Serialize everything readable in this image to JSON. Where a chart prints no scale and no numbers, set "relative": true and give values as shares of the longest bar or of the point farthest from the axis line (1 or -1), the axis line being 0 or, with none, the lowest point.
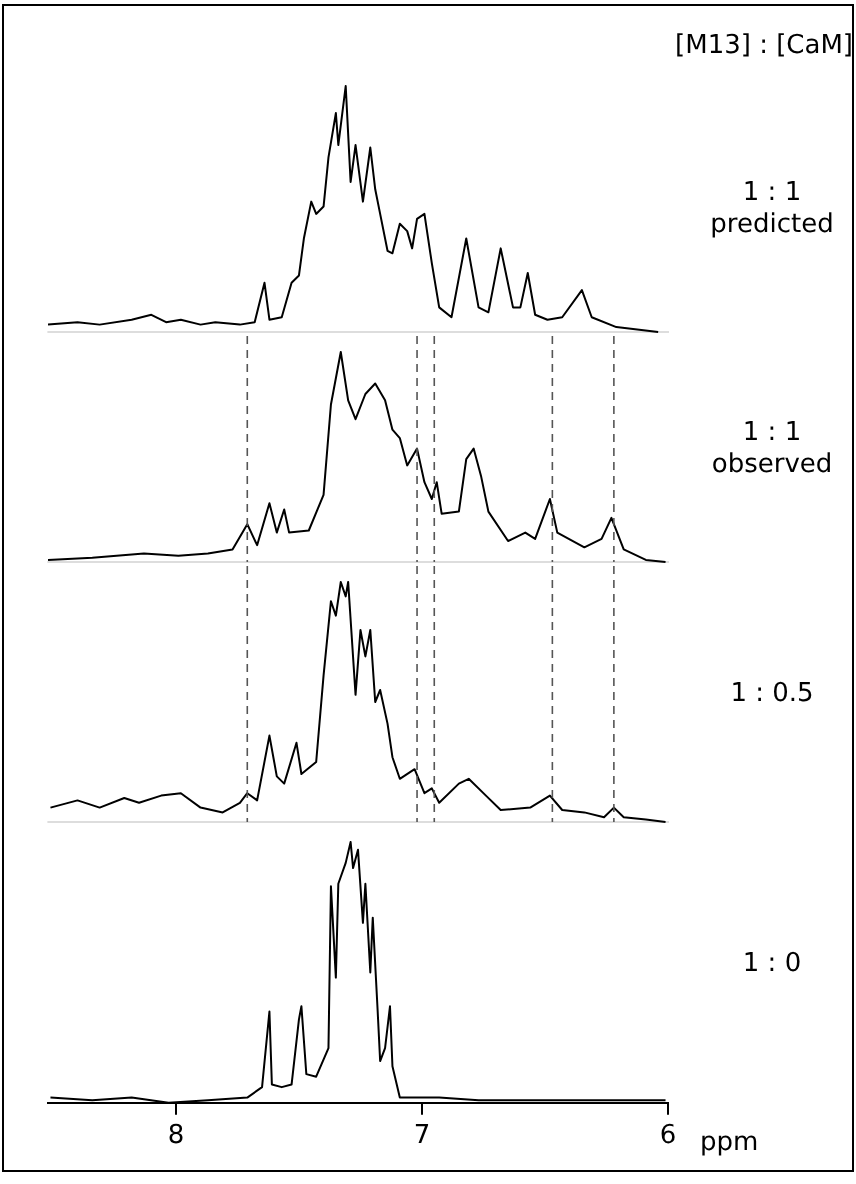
{
  "chart_data": [
    {
      "type": "line",
      "relative": true,
      "title": "[M13] : [CaM]",
      "annotations": [
        "1 : 1",
        "predicted"
      ],
      "tick_labels": false,
      "xlim": [
        8.52,
        6
      ],
      "marker": "none",
      "color": "#000000",
      "x": [
        8.52,
        8.4,
        8.31,
        8.18,
        8.1,
        8.04,
        7.98,
        7.9,
        7.84,
        7.74,
        7.68,
        7.64,
        7.62,
        7.57,
        7.53,
        7.5,
        7.48,
        7.45,
        7.43,
        7.4,
        7.38,
        7.35,
        7.34,
        7.31,
        7.29,
        7.27,
        7.24,
        7.21,
        7.19,
        7.17,
        7.14,
        7.12,
        7.09,
        7.06,
        7.04,
        7.02,
        6.99,
        6.96,
        6.93,
        6.88,
        6.82,
        6.77,
        6.73,
        6.68,
        6.63,
        6.6,
        6.57,
        6.54,
        6.49,
        6.43,
        6.35,
        6.31,
        6.21,
        6.04
      ],
      "values": [
        0.03,
        0.04,
        0.03,
        0.05,
        0.07,
        0.04,
        0.05,
        0.03,
        0.04,
        0.03,
        0.04,
        0.2,
        0.05,
        0.06,
        0.2,
        0.23,
        0.38,
        0.53,
        0.48,
        0.51,
        0.71,
        0.89,
        0.76,
        1,
        0.61,
        0.76,
        0.53,
        0.75,
        0.58,
        0.48,
        0.33,
        0.32,
        0.44,
        0.41,
        0.34,
        0.46,
        0.48,
        0.28,
        0.1,
        0.06,
        0.38,
        0.1,
        0.08,
        0.34,
        0.1,
        0.1,
        0.24,
        0.07,
        0.05,
        0.06,
        0.17,
        0.06,
        0.02,
        0
      ]
    },
    {
      "type": "line",
      "relative": true,
      "annotations": [
        "1 : 1",
        "observed"
      ],
      "tick_labels": false,
      "xlim": [
        8.52,
        6
      ],
      "marker": "none",
      "color": "#000000",
      "ref_lines": [
        {
          "axis": "x",
          "value": 7.71,
          "line_style": "dashed"
        },
        {
          "axis": "x",
          "value": 7.02,
          "line_style": "dashed"
        },
        {
          "axis": "x",
          "value": 6.95,
          "line_style": "dashed"
        },
        {
          "axis": "x",
          "value": 6.47,
          "line_style": "dashed"
        },
        {
          "axis": "x",
          "value": 6.22,
          "line_style": "dashed"
        }
      ],
      "x": [
        8.52,
        8.34,
        8.13,
        7.99,
        7.87,
        7.77,
        7.71,
        7.67,
        7.62,
        7.59,
        7.56,
        7.54,
        7.46,
        7.4,
        7.37,
        7.33,
        7.3,
        7.27,
        7.23,
        7.19,
        7.15,
        7.12,
        7.09,
        7.06,
        7.02,
        6.99,
        6.96,
        6.94,
        6.92,
        6.85,
        6.82,
        6.79,
        6.76,
        6.73,
        6.65,
        6.58,
        6.54,
        6.48,
        6.45,
        6.34,
        6.27,
        6.23,
        6.18,
        6.09,
        6.01
      ],
      "values": [
        0.01,
        0.02,
        0.04,
        0.03,
        0.04,
        0.06,
        0.18,
        0.08,
        0.28,
        0.14,
        0.25,
        0.14,
        0.15,
        0.32,
        0.75,
        1,
        0.77,
        0.68,
        0.8,
        0.85,
        0.77,
        0.63,
        0.59,
        0.46,
        0.54,
        0.38,
        0.3,
        0.38,
        0.23,
        0.24,
        0.49,
        0.54,
        0.41,
        0.24,
        0.1,
        0.14,
        0.11,
        0.3,
        0.14,
        0.07,
        0.11,
        0.21,
        0.06,
        0.01,
        0
      ]
    },
    {
      "type": "line",
      "relative": true,
      "annotations": [
        "1 : 0.5"
      ],
      "tick_labels": false,
      "xlim": [
        8.52,
        6
      ],
      "marker": "none",
      "color": "#000000",
      "ref_lines": [
        {
          "axis": "x",
          "value": 7.71,
          "line_style": "dashed"
        },
        {
          "axis": "x",
          "value": 7.02,
          "line_style": "dashed"
        },
        {
          "axis": "x",
          "value": 6.95,
          "line_style": "dashed"
        },
        {
          "axis": "x",
          "value": 6.47,
          "line_style": "dashed"
        },
        {
          "axis": "x",
          "value": 6.22,
          "line_style": "dashed"
        }
      ],
      "x": [
        8.51,
        8.4,
        8.31,
        8.21,
        8.15,
        8.06,
        7.98,
        7.9,
        7.81,
        7.74,
        7.71,
        7.67,
        7.62,
        7.59,
        7.56,
        7.51,
        7.49,
        7.43,
        7.4,
        7.37,
        7.35,
        7.33,
        7.31,
        7.3,
        7.27,
        7.25,
        7.23,
        7.21,
        7.19,
        7.17,
        7.14,
        7.12,
        7.09,
        7.03,
        6.99,
        6.96,
        6.93,
        6.85,
        6.81,
        6.74,
        6.68,
        6.56,
        6.48,
        6.43,
        6.34,
        6.26,
        6.22,
        6.18,
        6.09,
        6.01
      ],
      "values": [
        0.06,
        0.09,
        0.06,
        0.1,
        0.08,
        0.11,
        0.12,
        0.06,
        0.04,
        0.08,
        0.12,
        0.09,
        0.36,
        0.19,
        0.16,
        0.33,
        0.2,
        0.25,
        0.61,
        0.92,
        0.86,
        1,
        0.94,
        1,
        0.53,
        0.8,
        0.69,
        0.8,
        0.5,
        0.55,
        0.41,
        0.27,
        0.18,
        0.22,
        0.12,
        0.14,
        0.08,
        0.16,
        0.18,
        0.11,
        0.05,
        0.06,
        0.11,
        0.05,
        0.04,
        0.02,
        0.06,
        0.02,
        0.01,
        0
      ]
    },
    {
      "type": "line",
      "relative": true,
      "annotations": [
        "1 : 0"
      ],
      "tick_labels": "x",
      "xlim": [
        8.52,
        6
      ],
      "xticks": [
        8,
        7,
        6
      ],
      "xlabel": "ppm",
      "marker": "none",
      "color": "#000000",
      "x": [
        8.51,
        8.34,
        8.18,
        8.03,
        7.87,
        7.71,
        7.65,
        7.62,
        7.61,
        7.57,
        7.53,
        7.5,
        7.49,
        7.47,
        7.43,
        7.38,
        7.37,
        7.35,
        7.34,
        7.31,
        7.29,
        7.28,
        7.26,
        7.24,
        7.23,
        7.21,
        7.2,
        7.18,
        7.17,
        7.15,
        7.13,
        7.12,
        7.09,
        6.93,
        6.77,
        6.62,
        6.46,
        6.31,
        6.15,
        6.01
      ],
      "values": [
        0.02,
        0.01,
        0.02,
        0,
        0.01,
        0.02,
        0.06,
        0.35,
        0.07,
        0.06,
        0.07,
        0.32,
        0.37,
        0.11,
        0.1,
        0.21,
        0.83,
        0.48,
        0.84,
        0.92,
        1,
        0.9,
        0.97,
        0.69,
        0.84,
        0.5,
        0.71,
        0.35,
        0.16,
        0.21,
        0.37,
        0.14,
        0.02,
        0.02,
        0.01,
        0.01,
        0.01,
        0.01,
        0.01,
        0.01
      ]
    }
  ]
}
